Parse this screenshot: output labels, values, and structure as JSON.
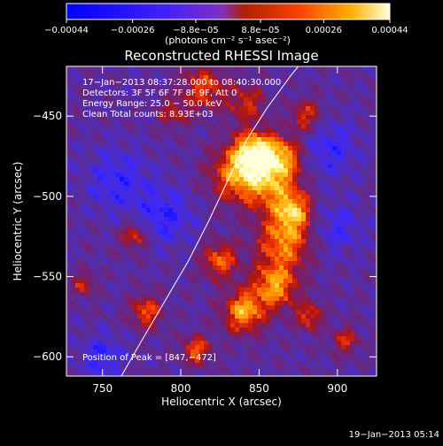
{
  "chart_data": {
    "type": "heatmap",
    "title": "Reconstructed RHESSI Image",
    "xlabel": "Heliocentric X (arcsec)",
    "ylabel": "Heliocentric Y (arcsec)",
    "xlim": [
      727,
      925
    ],
    "ylim": [
      -612,
      -419
    ],
    "x_ticks": [
      750,
      800,
      850,
      900
    ],
    "y_ticks": [
      -600,
      -550,
      -500,
      -450
    ],
    "x_tick_labels": [
      "750",
      "800",
      "850",
      "900"
    ],
    "y_tick_labels": [
      "−600",
      "−550",
      "−500",
      "−450"
    ],
    "colorbar": {
      "range": [
        -0.00044,
        0.00044
      ],
      "tick_values": [
        -0.00044,
        -0.00026,
        -8.8e-05,
        8.8e-05,
        0.00026,
        0.00044
      ],
      "tick_labels": [
        "−0.00044",
        "−0.00026",
        "−8.8e−05",
        "8.8e−05",
        "0.00026",
        "0.00044"
      ],
      "unit_label": "(photons cm⁻² s⁻¹ asec⁻²)"
    },
    "annotations": [
      "17−Jan−2013 08:37:28.000 to 08:40:30.000",
      "Detectors: 3F 5F 6F 7F 8F 9F, Att 0",
      "Energy Range: 25.0 − 50.0 keV",
      "Clean    Total counts: 8.93E+03"
    ],
    "peak_label": "Position of Peak = [847,−472]",
    "peak": [
      847,
      -472
    ],
    "limb_line": [
      [
        762,
        -612
      ],
      [
        775,
        -590
      ],
      [
        790,
        -565
      ],
      [
        805,
        -540
      ],
      [
        818,
        -515
      ],
      [
        830,
        -490
      ],
      [
        842,
        -465
      ],
      [
        855,
        -445
      ],
      [
        870,
        -425
      ],
      [
        875,
        -419
      ]
    ],
    "sources": [
      {
        "x": 847,
        "y": -472,
        "amp": 1.0,
        "r": 9
      },
      {
        "x": 836,
        "y": -486,
        "amp": 0.8,
        "r": 12
      },
      {
        "x": 858,
        "y": -492,
        "amp": 0.75,
        "r": 12
      },
      {
        "x": 865,
        "y": -475,
        "amp": 0.7,
        "r": 9
      },
      {
        "x": 872,
        "y": -509,
        "amp": 0.8,
        "r": 8
      },
      {
        "x": 866,
        "y": -528,
        "amp": 0.8,
        "r": 12
      },
      {
        "x": 860,
        "y": -556,
        "amp": 0.85,
        "r": 10
      },
      {
        "x": 840,
        "y": -572,
        "amp": 0.9,
        "r": 9
      },
      {
        "x": 825,
        "y": -540,
        "amp": 0.7,
        "r": 8
      },
      {
        "x": 815,
        "y": -432,
        "amp": 0.6,
        "r": 10
      },
      {
        "x": 842,
        "y": -442,
        "amp": 0.5,
        "r": 8
      },
      {
        "x": 880,
        "y": -450,
        "amp": 0.55,
        "r": 7
      },
      {
        "x": 795,
        "y": -448,
        "amp": 0.4,
        "r": 7
      },
      {
        "x": 770,
        "y": -525,
        "amp": 0.55,
        "r": 6
      },
      {
        "x": 778,
        "y": -572,
        "amp": 0.65,
        "r": 7
      },
      {
        "x": 810,
        "y": -596,
        "amp": 0.7,
        "r": 6
      },
      {
        "x": 738,
        "y": -555,
        "amp": 0.5,
        "r": 5
      },
      {
        "x": 882,
        "y": -575,
        "amp": 0.6,
        "r": 6
      },
      {
        "x": 905,
        "y": -590,
        "amp": 0.5,
        "r": 6
      },
      {
        "x": 790,
        "y": -512,
        "amp": -0.4,
        "r": 12
      },
      {
        "x": 760,
        "y": -490,
        "amp": -0.35,
        "r": 14
      },
      {
        "x": 895,
        "y": -470,
        "amp": -0.35,
        "r": 12
      },
      {
        "x": 900,
        "y": -520,
        "amp": -0.3,
        "r": 11
      },
      {
        "x": 750,
        "y": -600,
        "amp": -0.4,
        "r": 9
      }
    ]
  },
  "footer_timestamp": "19−Jan−2013 05:14"
}
